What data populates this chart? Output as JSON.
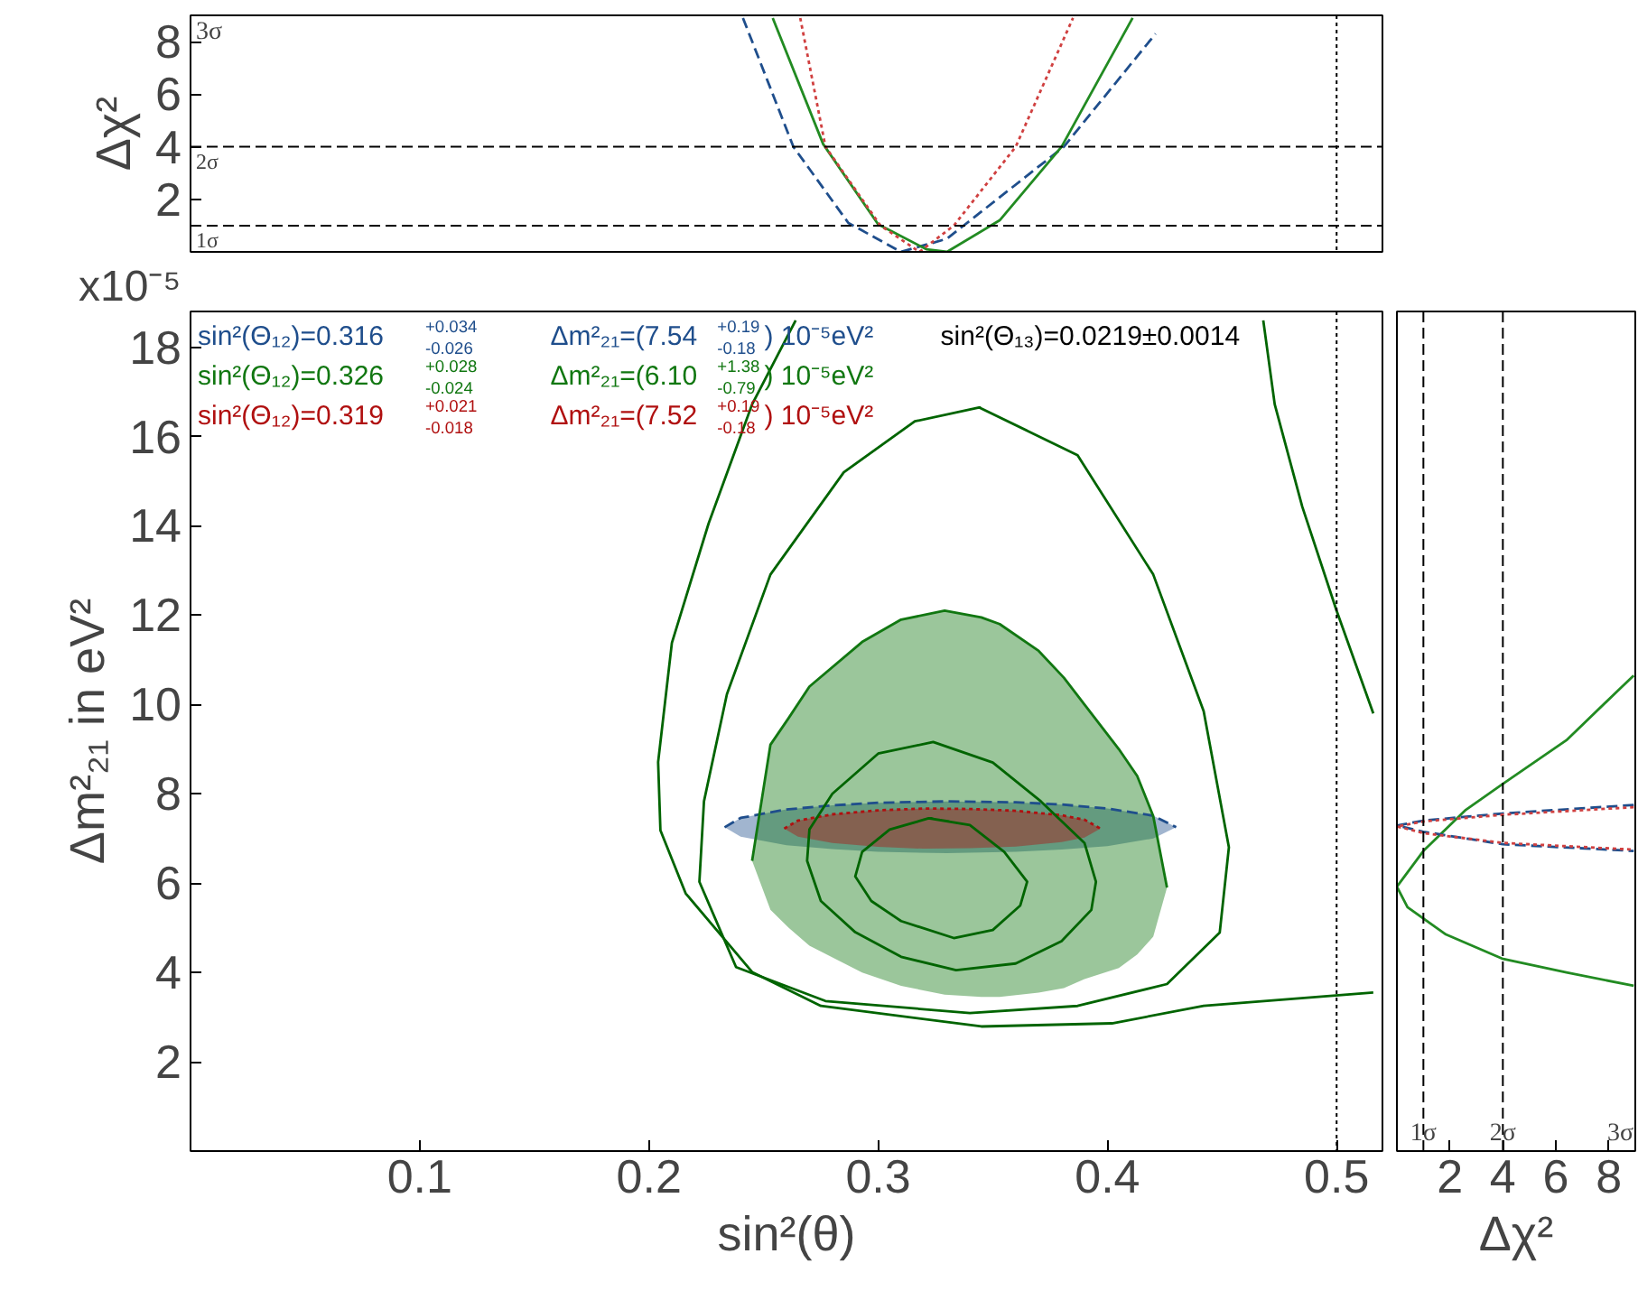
{
  "chart_data": [
    {
      "type": "line",
      "ylabel": "Δχ²",
      "xlim": [
        0,
        0.52
      ],
      "ylim": [
        0,
        9
      ],
      "yticks": [
        2,
        4,
        6,
        8
      ],
      "tick_labels": "y",
      "grid": false,
      "ref_lines": [
        {
          "axis": "y",
          "value": 1,
          "label": "1σ",
          "line_style": "dashed",
          "color": "#000000"
        },
        {
          "axis": "y",
          "value": 4,
          "label": "2σ",
          "line_style": "dashed",
          "color": "#000000"
        },
        {
          "axis": "x",
          "value": 0.5,
          "line_style": "dotted",
          "color": "#000000"
        }
      ],
      "annotations": [
        "3σ"
      ],
      "series": [
        {
          "x": [
            0.241,
            0.263,
            0.287,
            0.31,
            0.33,
            0.381,
            0.421
          ],
          "values": [
            8.9,
            4.0,
            1.1,
            0,
            0.5,
            4.0,
            8.3
          ],
          "color": "#1f4e8c",
          "line_style": "dashed"
        },
        {
          "x": [
            0.254,
            0.276,
            0.3,
            0.321,
            0.33,
            0.353,
            0.38,
            0.411
          ],
          "values": [
            8.9,
            4.1,
            1.05,
            0.1,
            0,
            1.2,
            4.0,
            8.9
          ],
          "color": "#228b22",
          "line_style": "solid"
        },
        {
          "x": [
            0.266,
            0.277,
            0.301,
            0.318,
            0.333,
            0.36,
            0.385
          ],
          "values": [
            8.9,
            4.0,
            1.0,
            0,
            1.0,
            4.0,
            8.9
          ],
          "color": "#d04040",
          "line_style": "dotted"
        }
      ]
    },
    {
      "type": "line",
      "xlabel": "sin²(θ)",
      "ylabel": "Δm²₂₁ in eV²",
      "xlim": [
        0,
        0.52
      ],
      "ylim": [
        0,
        18.8
      ],
      "xticks": [
        0.1,
        0.2,
        0.3,
        0.4,
        0.5
      ],
      "yticks": [
        2,
        4,
        6,
        8,
        10,
        12,
        14,
        16,
        18
      ],
      "grid": false,
      "ref_lines": [
        {
          "axis": "x",
          "value": 0.5,
          "line_style": "dotted",
          "color": "#000000"
        }
      ],
      "annotations": [
        "x10⁻⁵",
        "sin²(Θ₁₃)=0.0219±0.0014"
      ],
      "series": [
        {
          "name": "sin²(Θ₁₂)=0.316$^{+0.034}$$_{-0.026}$    Δm²₂₁=(7.54$^{+0.19}$$_{-0.18}$) 10⁻⁵eV²",
          "x": [
            0.233,
            0.24,
            0.26,
            0.28,
            0.3,
            0.33,
            0.36,
            0.38,
            0.4,
            0.42,
            0.43
          ],
          "values": [
            7.25,
            7.46,
            7.65,
            7.74,
            7.8,
            7.83,
            7.81,
            7.76,
            7.67,
            7.51,
            7.25
          ],
          "upper": [
            7.25,
            7.46,
            7.65,
            7.74,
            7.8,
            7.83,
            7.81,
            7.76,
            7.67,
            7.51,
            7.25
          ],
          "lower": [
            7.25,
            7.04,
            6.85,
            6.76,
            6.7,
            6.67,
            6.7,
            6.75,
            6.83,
            7.0,
            7.25
          ],
          "color": "#1f4e8c",
          "line_style": "dashed"
        },
        {
          "name": "sin²(Θ₁₂)=0.326$^{+0.028}$$_{-0.024}$    Δm²₂₁=(6.10$^{+1.38}$$_{-0.79}$) 10⁻⁵eV²",
          "x": [
            0.245,
            0.253,
            0.261,
            0.27,
            0.293,
            0.31,
            0.329,
            0.345,
            0.353,
            0.37,
            0.381,
            0.39,
            0.405,
            0.413,
            0.42,
            0.426
          ],
          "values": [
            6.5,
            9.1,
            9.7,
            10.4,
            11.4,
            11.9,
            12.1,
            11.95,
            11.8,
            11.2,
            10.6,
            10.0,
            9.0,
            8.4,
            7.5,
            5.9
          ],
          "upper": [
            6.5,
            9.1,
            9.7,
            10.4,
            11.4,
            11.9,
            12.1,
            11.95,
            11.8,
            11.2,
            10.6,
            10.0,
            9.0,
            8.4,
            7.5,
            5.9
          ],
          "lower": [
            6.5,
            5.4,
            5.0,
            4.6,
            4.0,
            3.7,
            3.5,
            3.45,
            3.45,
            3.55,
            3.65,
            3.85,
            4.1,
            4.4,
            4.8,
            5.9
          ],
          "color": "#117711",
          "line_style": "solid"
        },
        {
          "name": "sin²(Θ₁₂)=0.319$^{+0.021}$$_{-0.018}$    Δm²₂₁=(7.52$^{+0.19}$$_{-0.18}$) 10⁻⁵eV²",
          "x": [
            0.259,
            0.265,
            0.28,
            0.3,
            0.32,
            0.34,
            0.36,
            0.38,
            0.39,
            0.397
          ],
          "values": [
            7.22,
            7.4,
            7.54,
            7.63,
            7.67,
            7.66,
            7.62,
            7.52,
            7.42,
            7.22
          ],
          "upper": [
            7.22,
            7.4,
            7.54,
            7.63,
            7.67,
            7.66,
            7.62,
            7.52,
            7.42,
            7.22
          ],
          "lower": [
            7.22,
            7.04,
            6.9,
            6.81,
            6.77,
            6.78,
            6.82,
            6.92,
            7.02,
            7.22
          ],
          "color": "#b01010",
          "line_style": "dotted"
        },
        {
          "x": [
            0.264,
            0.245,
            0.226,
            0.21,
            0.204,
            0.205,
            0.216,
            0.245,
            0.275,
            0.345,
            0.402,
            0.442,
            0.516,
            null,
            0.468,
            0.473,
            0.485,
            0.5,
            0.516
          ],
          "values": [
            18.6,
            16.72,
            14.05,
            11.38,
            8.71,
            7.18,
            5.77,
            4.01,
            3.25,
            2.79,
            2.86,
            3.25,
            3.55,
            null,
            18.6,
            16.72,
            14.43,
            12.1,
            9.8
          ],
          "color": "#006400",
          "line_style": "solid"
        },
        {
          "x": [
            0.344,
            0.387,
            0.42,
            0.442,
            0.453,
            0.449,
            0.426,
            0.387,
            0.34,
            0.277,
            0.238,
            0.222,
            0.224,
            0.234,
            0.253,
            0.285,
            0.316,
            0.344,
            0.365
          ],
          "values": [
            16.65,
            15.58,
            12.91,
            9.85,
            6.8,
            4.89,
            3.74,
            3.25,
            3.09,
            3.36,
            4.12,
            6.03,
            7.83,
            10.23,
            12.91,
            15.2,
            16.34,
            16.65,
            16.13
          ],
          "color": "#006400",
          "line_style": "solid"
        },
        {
          "x": [
            0.324,
            0.35,
            0.371,
            0.39,
            0.395,
            0.393,
            0.38,
            0.36,
            0.334,
            0.31,
            0.29,
            0.275,
            0.269,
            0.27,
            0.28,
            0.3,
            0.324,
            0.337
          ],
          "values": [
            9.16,
            8.7,
            7.83,
            6.9,
            6.03,
            5.4,
            4.7,
            4.2,
            4.05,
            4.35,
            4.9,
            5.6,
            6.5,
            7.2,
            8.0,
            8.9,
            9.16,
            8.93
          ],
          "color": "#006400",
          "line_style": "solid"
        },
        {
          "x": [
            0.322,
            0.34,
            0.355,
            0.365,
            0.362,
            0.35,
            0.333,
            0.31,
            0.297,
            0.29,
            0.293,
            0.305,
            0.322,
            0.331
          ],
          "values": [
            7.45,
            7.3,
            6.7,
            6.03,
            5.5,
            4.95,
            4.77,
            5.15,
            5.6,
            6.15,
            6.7,
            7.2,
            7.45,
            7.38
          ],
          "color": "#006400",
          "line_style": "solid"
        }
      ]
    },
    {
      "type": "line",
      "xlabel": "Δχ²",
      "xlim": [
        0,
        9
      ],
      "xticks": [
        2,
        4,
        6,
        8
      ],
      "ylim": [
        0,
        18.8
      ],
      "tick_labels": "x",
      "grid": false,
      "ref_lines": [
        {
          "axis": "x",
          "value": 1,
          "label": "1σ",
          "line_style": "dashed",
          "color": "#000000"
        },
        {
          "axis": "x",
          "value": 4,
          "label": "2σ",
          "line_style": "dashed",
          "color": "#000000"
        }
      ],
      "annotations": [
        "3σ"
      ],
      "series": [
        {
          "x": [
            8.94,
            6.4,
            3.97,
            2.6,
            1.0,
            0,
            0.4,
            1.85,
            3.97,
            6.4,
            8.94
          ],
          "values": [
            10.65,
            9.2,
            8.21,
            7.64,
            6.72,
            5.92,
            5.46,
            4.85,
            4.31,
            4.0,
            3.7
          ],
          "color": "#228b22",
          "line_style": "solid"
        },
        {
          "x": [
            8.94,
            4,
            1,
            0,
            1,
            4,
            8.94
          ],
          "values": [
            7.75,
            7.56,
            7.4,
            7.29,
            7.15,
            6.87,
            6.72
          ],
          "color": "#1f4e8c",
          "line_style": "dashed"
        },
        {
          "x": [
            8.94,
            4,
            1,
            0,
            1,
            4,
            8.94
          ],
          "values": [
            7.7,
            7.53,
            7.38,
            7.27,
            7.12,
            6.9,
            6.75
          ],
          "color": "#d04040",
          "line_style": "dotted"
        }
      ]
    }
  ]
}
